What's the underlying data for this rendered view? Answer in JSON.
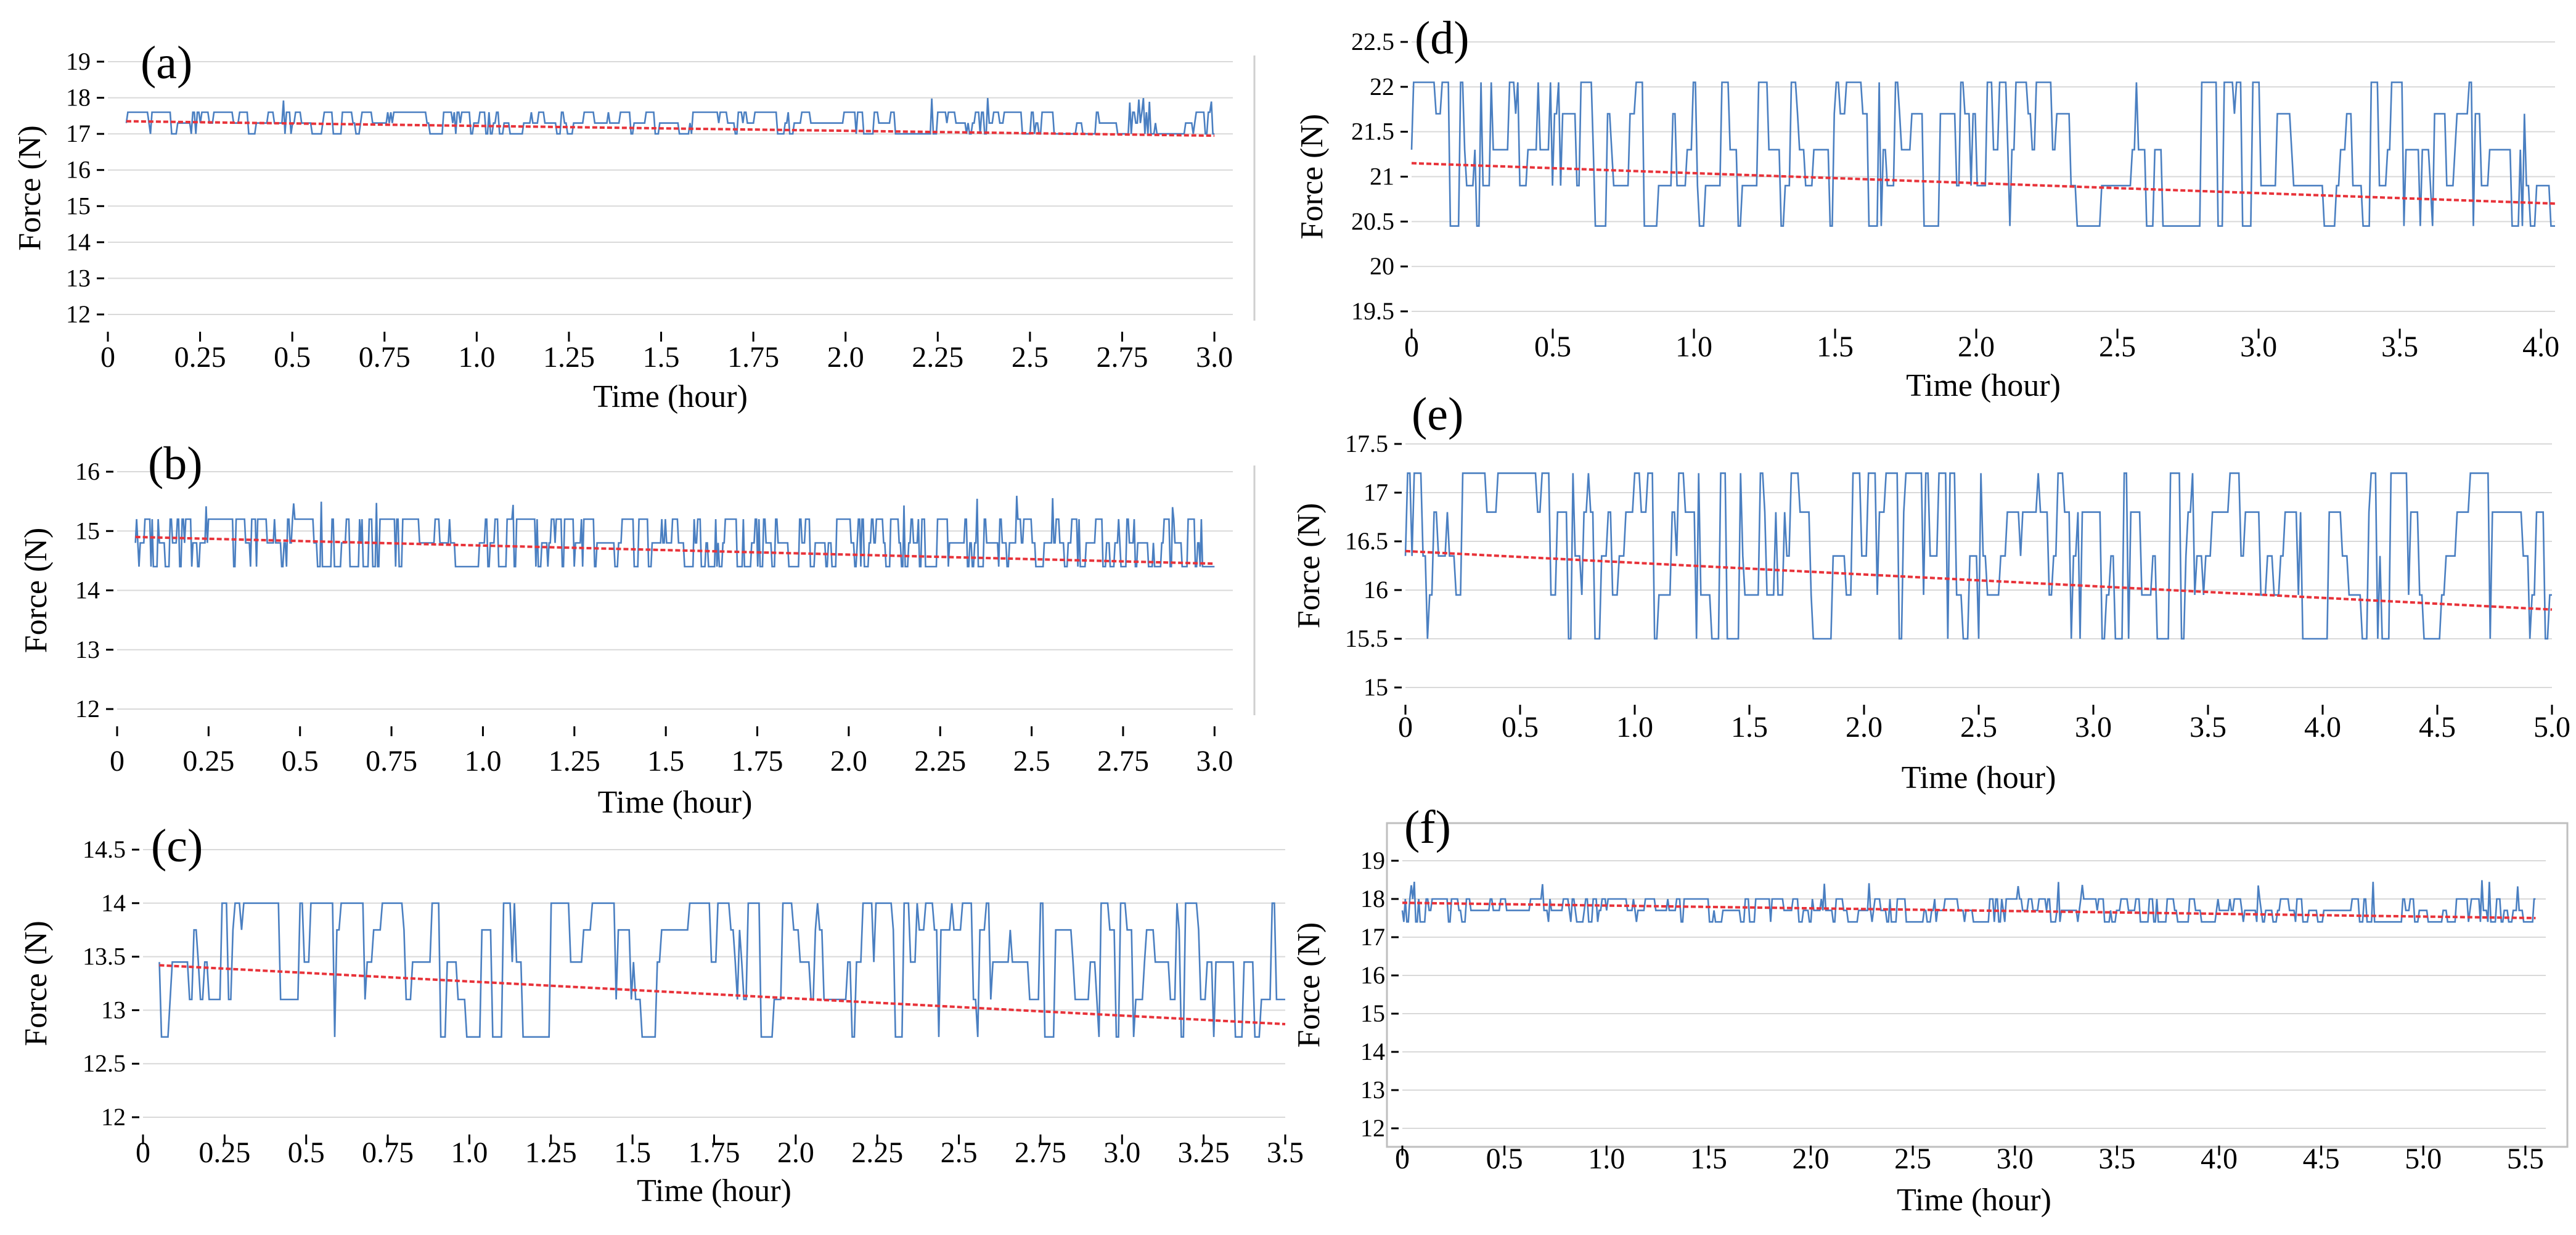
{
  "colors": {
    "signal": "#4a7fc1",
    "trend": "#e8333a",
    "grid": "#d9d9d9",
    "axis": "#000000"
  },
  "chart_data": [
    {
      "type": "line",
      "panel": "(a)",
      "ylabel": "Force (N)",
      "xlabel": "Time (hour)",
      "yticks": [
        "12",
        "13",
        "14",
        "15",
        "16",
        "17",
        "18",
        "19"
      ],
      "ylim": [
        12,
        19
      ],
      "xticks": [
        "0",
        "0.25",
        "0.5",
        "0.75",
        "1.0",
        "1.25",
        "1.5",
        "1.75",
        "2.0",
        "2.25",
        "2.5",
        "2.75",
        "3.0"
      ],
      "xlim": [
        0,
        3.05
      ],
      "series": [
        {
          "name": "force",
          "x_start": 0.05,
          "x_end": 3.0,
          "levels": [
            17.0,
            17.3,
            17.6
          ],
          "spike_max": 18.0,
          "n": 720,
          "seed": 11
        },
        {
          "name": "trend",
          "x": [
            0.05,
            3.0
          ],
          "y": [
            17.35,
            16.95
          ]
        }
      ]
    },
    {
      "type": "line",
      "panel": "(b)",
      "ylabel": "Force (N)",
      "xlabel": "Time (hour)",
      "yticks": [
        "12",
        "13",
        "14",
        "15",
        "16"
      ],
      "ylim": [
        12,
        16
      ],
      "xticks": [
        "0",
        "0.25",
        "0.5",
        "0.75",
        "1.0",
        "1.25",
        "1.5",
        "1.75",
        "2.0",
        "2.25",
        "2.5",
        "2.75",
        "3.0"
      ],
      "xlim": [
        0,
        3.05
      ],
      "series": [
        {
          "name": "force",
          "x_start": 0.05,
          "x_end": 3.0,
          "levels": [
            14.4,
            14.8,
            15.2
          ],
          "spike_max": 15.6,
          "n": 900,
          "seed": 23
        },
        {
          "name": "trend",
          "x": [
            0.05,
            3.0
          ],
          "y": [
            14.9,
            14.45
          ]
        }
      ]
    },
    {
      "type": "line",
      "panel": "(c)",
      "ylabel": "Force (N)",
      "xlabel": "Time (hour)",
      "yticks": [
        "12",
        "12.5",
        "13",
        "13.5",
        "14",
        "14.5"
      ],
      "ylim": [
        12,
        14.5
      ],
      "xticks": [
        "0",
        "0.25",
        "0.5",
        "0.75",
        "1.0",
        "1.25",
        "1.5",
        "1.75",
        "2.0",
        "2.25",
        "2.5",
        "2.75",
        "3.0",
        "3.25",
        "3.5"
      ],
      "xlim": [
        0,
        3.5
      ],
      "series": [
        {
          "name": "force",
          "x_start": 0.05,
          "x_end": 3.5,
          "levels": [
            12.75,
            13.1,
            13.45,
            13.75,
            14.0
          ],
          "spike_max": 14.0,
          "n": 520,
          "seed": 37
        },
        {
          "name": "trend",
          "x": [
            0.05,
            3.5
          ],
          "y": [
            13.42,
            12.87
          ]
        }
      ]
    },
    {
      "type": "line",
      "panel": "(d)",
      "ylabel": "Force (N)",
      "xlabel": "Time (hour)",
      "yticks": [
        "19.5",
        "20",
        "20.5",
        "21",
        "21.5",
        "22",
        "22.5"
      ],
      "ylim": [
        19.5,
        22.5
      ],
      "xticks": [
        "0",
        "0.5",
        "1.0",
        "1.5",
        "2.0",
        "2.5",
        "3.0",
        "3.5",
        "4.0"
      ],
      "xlim": [
        0,
        4.05
      ],
      "series": [
        {
          "name": "force",
          "x_start": 0.0,
          "x_end": 4.05,
          "levels": [
            20.45,
            20.9,
            21.3,
            21.7,
            22.05
          ],
          "spike_max": 22.05,
          "n": 560,
          "seed": 41
        },
        {
          "name": "trend",
          "x": [
            0.0,
            4.05
          ],
          "y": [
            21.15,
            20.7
          ]
        }
      ]
    },
    {
      "type": "line",
      "panel": "(e)",
      "ylabel": "Force (N)",
      "xlabel": "Time (hour)",
      "yticks": [
        "15",
        "15.5",
        "16",
        "16.5",
        "17",
        "17.5"
      ],
      "ylim": [
        15,
        17.5
      ],
      "xticks": [
        "0",
        "0.5",
        "1.0",
        "1.5",
        "2.0",
        "2.5",
        "3.0",
        "3.5",
        "4.0",
        "4.5",
        "5.0"
      ],
      "xlim": [
        0,
        5.0
      ],
      "series": [
        {
          "name": "force",
          "x_start": 0.0,
          "x_end": 5.0,
          "levels": [
            15.5,
            15.95,
            16.35,
            16.8,
            17.2
          ],
          "spike_max": 17.2,
          "n": 520,
          "seed": 53
        },
        {
          "name": "trend",
          "x": [
            0.0,
            5.0
          ],
          "y": [
            16.4,
            15.8
          ]
        }
      ]
    },
    {
      "type": "line",
      "panel": "(f)",
      "ylabel": "Force (N)",
      "xlabel": "Time (hour)",
      "yticks": [
        "12",
        "13",
        "14",
        "15",
        "16",
        "17",
        "18",
        "19"
      ],
      "ylim": [
        12,
        19.5
      ],
      "xticks": [
        "0",
        "0.5",
        "1.0",
        "1.5",
        "2.0",
        "2.5",
        "3.0",
        "3.5",
        "4.0",
        "4.5",
        "5.0",
        "5.5"
      ],
      "xlim": [
        0,
        5.6
      ],
      "series": [
        {
          "name": "force",
          "x_start": 0.0,
          "x_end": 5.55,
          "levels": [
            17.4,
            17.7,
            18.0
          ],
          "spike_max": 18.5,
          "n": 760,
          "seed": 67
        },
        {
          "name": "trend",
          "x": [
            0.0,
            5.55
          ],
          "y": [
            17.9,
            17.5
          ]
        }
      ]
    }
  ]
}
